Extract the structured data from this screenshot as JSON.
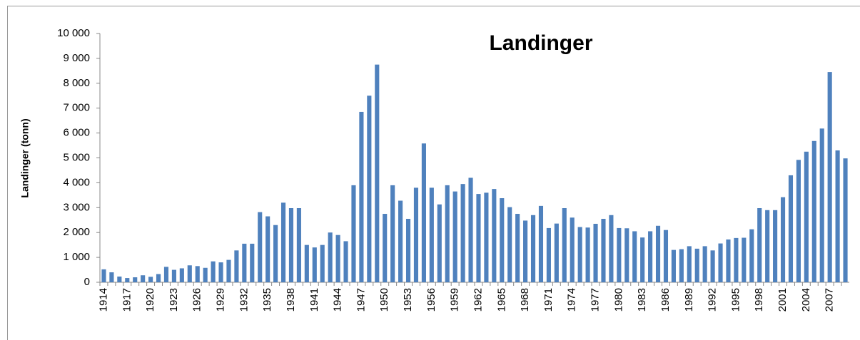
{
  "chart_data": {
    "type": "bar",
    "title": "Landinger",
    "y_label": "Landinger (tonn)",
    "categories": [
      "1914",
      null,
      null,
      "1917",
      null,
      null,
      "1920",
      null,
      null,
      "1923",
      null,
      null,
      "1926",
      null,
      null,
      "1929",
      null,
      null,
      "1932",
      null,
      null,
      "1935",
      null,
      null,
      "1938",
      null,
      null,
      "1941",
      null,
      null,
      "1944",
      null,
      null,
      "1947",
      null,
      null,
      "1950",
      null,
      null,
      "1953",
      null,
      null,
      "1956",
      null,
      null,
      "1959",
      null,
      null,
      "1962",
      null,
      null,
      "1965",
      null,
      null,
      "1968",
      null,
      null,
      "1971",
      null,
      null,
      "1974",
      null,
      null,
      "1977",
      null,
      null,
      "1980",
      null,
      null,
      "1983",
      null,
      null,
      "1986",
      null,
      null,
      "1989",
      null,
      null,
      "1992",
      null,
      null,
      "1995",
      null,
      null,
      "1998",
      null,
      null,
      "2001",
      null,
      null,
      "2004",
      null,
      null,
      "2007",
      null,
      null
    ],
    "values": [
      520,
      400,
      230,
      170,
      200,
      280,
      220,
      330,
      620,
      500,
      560,
      680,
      650,
      580,
      840,
      800,
      900,
      1280,
      1550,
      1550,
      2820,
      2650,
      2300,
      3200,
      2980,
      2980,
      1500,
      1400,
      1500,
      2000,
      1900,
      1650,
      3900,
      6850,
      7500,
      8750,
      2750,
      3900,
      3280,
      2550,
      3800,
      5580,
      3800,
      3130,
      3900,
      3650,
      3950,
      4200,
      3550,
      3600,
      3750,
      3380,
      3020,
      2750,
      2480,
      2700,
      3070,
      2180,
      2360,
      2980,
      2600,
      2220,
      2200,
      2350,
      2550,
      2700,
      2180,
      2170,
      2050,
      1800,
      2050,
      2270,
      2100,
      1300,
      1330,
      1450,
      1350,
      1450,
      1280,
      1560,
      1720,
      1780,
      1790,
      2130,
      2980,
      2900,
      2900,
      3420,
      4300,
      4920,
      5250,
      5680,
      6180,
      8450,
      5300,
      4980
    ],
    "color": "#4f81bd",
    "ylim": [
      0,
      10000
    ],
    "yticks": [
      0,
      {
        "value": 1000,
        "label": "1 000"
      },
      {
        "value": 2000,
        "label": "2 000"
      },
      {
        "value": 3000,
        "label": "3 000"
      },
      {
        "value": 4000,
        "label": "4 000"
      },
      {
        "value": 5000,
        "label": "5 000"
      },
      {
        "value": 6000,
        "label": "6 000"
      },
      {
        "value": 7000,
        "label": "7 000"
      },
      {
        "value": 8000,
        "label": "8 000"
      },
      {
        "value": 9000,
        "label": "9 000"
      },
      {
        "value": 10000,
        "label": "10 000"
      }
    ],
    "grid": false
  }
}
